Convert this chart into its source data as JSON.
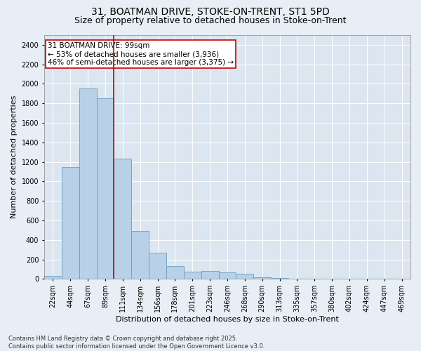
{
  "title_line1": "31, BOATMAN DRIVE, STOKE-ON-TRENT, ST1 5PD",
  "title_line2": "Size of property relative to detached houses in Stoke-on-Trent",
  "xlabel": "Distribution of detached houses by size in Stoke-on-Trent",
  "ylabel": "Number of detached properties",
  "categories": [
    "22sqm",
    "44sqm",
    "67sqm",
    "89sqm",
    "111sqm",
    "134sqm",
    "156sqm",
    "178sqm",
    "201sqm",
    "223sqm",
    "246sqm",
    "268sqm",
    "290sqm",
    "313sqm",
    "335sqm",
    "357sqm",
    "380sqm",
    "402sqm",
    "424sqm",
    "447sqm",
    "469sqm"
  ],
  "values": [
    30,
    1150,
    1950,
    1850,
    1230,
    490,
    270,
    130,
    75,
    85,
    65,
    50,
    20,
    10,
    5,
    5,
    3,
    2,
    2,
    2,
    2
  ],
  "bar_color": "#b8d0e8",
  "bar_edge_color": "#6a9fc0",
  "vline_color": "#cc0000",
  "annotation_text": "31 BOATMAN DRIVE: 99sqm\n← 53% of detached houses are smaller (3,936)\n46% of semi-detached houses are larger (3,375) →",
  "annotation_box_color": "#ffffff",
  "annotation_box_edge": "#cc0000",
  "ylim": [
    0,
    2500
  ],
  "yticks": [
    0,
    200,
    400,
    600,
    800,
    1000,
    1200,
    1400,
    1600,
    1800,
    2000,
    2200,
    2400
  ],
  "bg_color": "#e8eef5",
  "plot_bg_color": "#dce6f0",
  "footer_text": "Contains HM Land Registry data © Crown copyright and database right 2025.\nContains public sector information licensed under the Open Government Licence v3.0.",
  "title_fontsize": 10,
  "subtitle_fontsize": 9,
  "axis_label_fontsize": 8,
  "tick_fontsize": 7,
  "annotation_fontsize": 7.5,
  "footer_fontsize": 6
}
